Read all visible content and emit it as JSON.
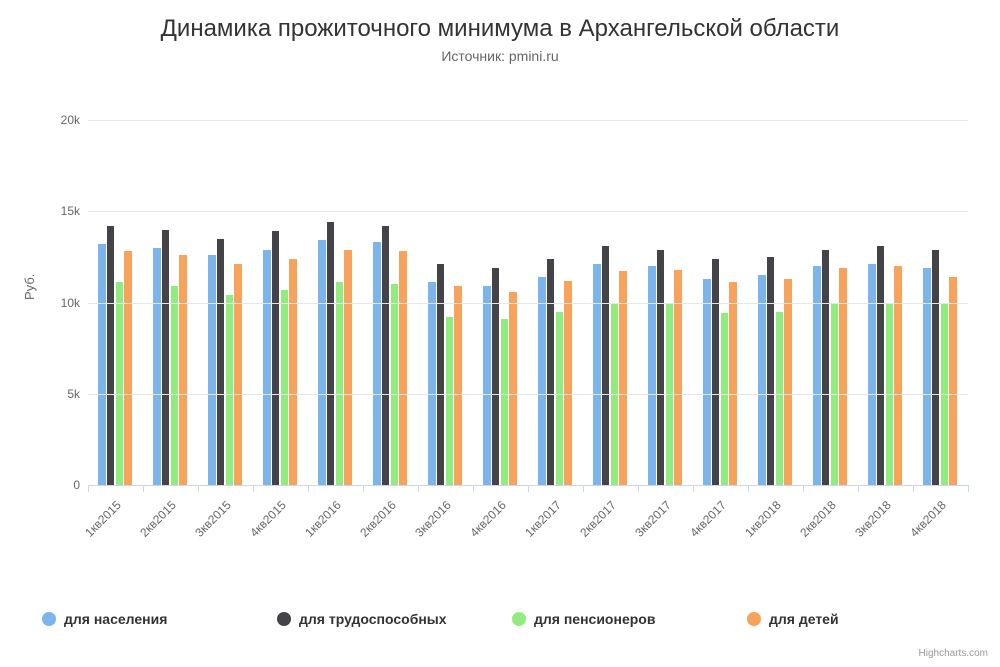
{
  "chart": {
    "type": "bar",
    "title": "Динамика прожиточного минимума в Архангельской области",
    "subtitle": "Источник: pmini.ru",
    "y_axis_title": "Руб.",
    "background_color": "#ffffff",
    "grid_color": "#e6e6e6",
    "axis_line_color": "#ccd6eb",
    "text_color": "#333333",
    "subtext_color": "#666666",
    "title_fontsize": 24,
    "subtitle_fontsize": 14,
    "axis_fontsize": 12,
    "legend_fontsize": 14,
    "ylim": [
      0,
      20000
    ],
    "ytick_step": 5000,
    "ytick_labels": [
      "0",
      "5k",
      "10k",
      "15k",
      "20k"
    ],
    "bar_group_width": 0.64,
    "bar_gap": 0.02,
    "categories": [
      "1кв2015",
      "2кв2015",
      "3кв2015",
      "4кв2015",
      "1кв2016",
      "2кв2016",
      "3кв2016",
      "4кв2016",
      "1кв2017",
      "2кв2017",
      "3кв2017",
      "4кв2017",
      "1кв2018",
      "2кв2018",
      "3кв2018",
      "4кв2018"
    ],
    "series": [
      {
        "name": "для населения",
        "color": "#7cb5ec",
        "data": [
          13200,
          13000,
          12600,
          12900,
          13400,
          13300,
          11100,
          10900,
          11400,
          12100,
          12000,
          11300,
          11500,
          12000,
          12100,
          11900
        ]
      },
      {
        "name": "для трудоспособных",
        "color": "#434348",
        "data": [
          14200,
          14000,
          13500,
          13900,
          14400,
          14200,
          12100,
          11900,
          12400,
          13100,
          12900,
          12400,
          12500,
          12900,
          13100,
          12900
        ]
      },
      {
        "name": "для пенсионеров",
        "color": "#90ed7d",
        "data": [
          11100,
          10900,
          10400,
          10700,
          11100,
          11000,
          9200,
          9100,
          9500,
          10000,
          9900,
          9400,
          9500,
          9900,
          10000,
          9900
        ]
      },
      {
        "name": "для детей",
        "color": "#f7a35c",
        "data": [
          12800,
          12600,
          12100,
          12400,
          12900,
          12800,
          10900,
          10600,
          11200,
          11700,
          11800,
          11100,
          11300,
          11900,
          12000,
          11400
        ]
      }
    ],
    "credits": "Highcharts.com"
  }
}
